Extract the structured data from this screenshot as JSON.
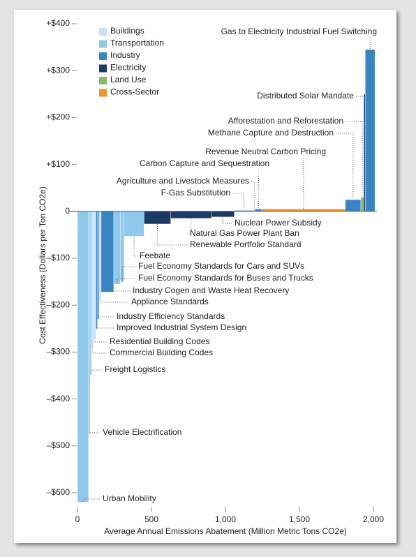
{
  "chart_data": {
    "type": "bar",
    "xlabel": "Average Annual Emissions Abatement (Million Metric Tons CO2e)",
    "ylabel": "Cost Effectiveness (Dollars per Ton CO2e)",
    "categories": [
      "Urban Mobility",
      "Vehicle Electrification",
      "Freight Logistics",
      "Commercial Building Codes",
      "Residential Building Codes",
      "Improved Industrial System Design",
      "Industry Efficiency Standards",
      "Appliance Standards",
      "Industry Cogen and Waste Heat Recovery",
      "Fuel Economy Standards for Buses and Trucks",
      "Fuel Economy Standards for Cars and SUVs",
      "Feebate",
      "Renewable Portfolio Standard",
      "Natural Gas Power Plant Ban",
      "Nuclear Power Subsidy",
      "F-Gas Substitution",
      "Agriculture and Livestock Measures",
      "Carbon Capture and Sequestration",
      "Revenue Neutral Carbon Pricing",
      "Methane Capture and Destruction",
      "Afforestation and Reforestation",
      "Distributed Solar Mandate",
      "Gas to Electricity Industrial Fuel Switching"
    ],
    "values": [
      -620,
      -475,
      -348,
      -290,
      -270,
      -250,
      -230,
      -190,
      -172,
      -155,
      -150,
      -53,
      -27,
      -15,
      -12,
      2,
      3,
      5,
      5,
      25,
      30,
      250,
      345
    ],
    "widths": [
      75,
      10,
      10,
      15,
      15,
      10,
      10,
      15,
      85,
      45,
      25,
      135,
      180,
      275,
      155,
      130,
      10,
      45,
      565,
      105,
      20,
      10,
      65
    ],
    "colors": [
      "#8fc9ec",
      "#8fc9ec",
      "#8fc9ec",
      "#c8e1f5",
      "#c8e1f5",
      "#3a84c2",
      "#3a84c2",
      "#c8e1f5",
      "#3a84c2",
      "#8fc9ec",
      "#8fc9ec",
      "#8fc9ec",
      "#1b3a66",
      "#1b3a66",
      "#1b3a66",
      "#3a84c2",
      "#8db86a",
      "#3a84c2",
      "#f0922b",
      "#3a84c2",
      "#8db86a",
      "#1b3a66",
      "#3a84c2"
    ],
    "legend": [
      {
        "name": "Buildings",
        "color": "#c8e1f5"
      },
      {
        "name": "Transportation",
        "color": "#8fc9ec"
      },
      {
        "name": "Industry",
        "color": "#3a84c2"
      },
      {
        "name": "Electricity",
        "color": "#1b3a66"
      },
      {
        "name": "Land Use",
        "color": "#8db86a"
      },
      {
        "name": "Cross-Sector",
        "color": "#f0922b"
      }
    ],
    "xlim": [
      0,
      2000
    ],
    "xticks": [
      0,
      500,
      {
        "value": 1000,
        "label": "1,000"
      },
      {
        "value": 1500,
        "label": "1,500"
      },
      {
        "value": 2000,
        "label": "2,000"
      }
    ],
    "ylim": [
      -600,
      400
    ],
    "yticks": [
      {
        "value": 400,
        "label": "+$400"
      },
      {
        "value": 300,
        "label": "+$300"
      },
      {
        "value": 200,
        "label": "+$200"
      },
      {
        "value": 100,
        "label": "+$100"
      },
      0,
      {
        "value": -100,
        "label": "–$100"
      },
      {
        "value": -200,
        "label": "–$200"
      },
      {
        "value": -300,
        "label": "–$300"
      },
      {
        "value": -400,
        "label": "–$400"
      },
      {
        "value": -500,
        "label": "–$500"
      },
      {
        "value": -600,
        "label": "–$600"
      }
    ]
  }
}
